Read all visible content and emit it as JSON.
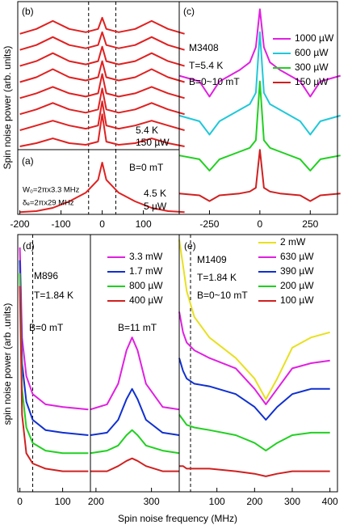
{
  "chart_data": [
    {
      "type": "line",
      "label": "(b)",
      "ylabel": "Spin noise power (arb. units)",
      "annotations": [
        "5.4 K",
        "150 µW"
      ],
      "xlim": [
        -205,
        187
      ],
      "ylim": [
        0,
        92
      ],
      "vlines": [
        -33,
        33
      ],
      "x": [
        -200,
        -160,
        -120,
        -80,
        -40,
        -10,
        0,
        10,
        40,
        80,
        120,
        160,
        200
      ],
      "series": [
        {
          "color": "#e02020",
          "values": [
            72,
            75,
            80,
            75,
            73,
            75,
            82,
            75,
            73,
            75,
            80,
            75,
            72
          ]
        },
        {
          "color": "#e02020",
          "values": [
            62,
            65,
            70,
            65,
            63,
            65,
            73,
            65,
            63,
            65,
            70,
            65,
            62
          ]
        },
        {
          "color": "#e02020",
          "values": [
            52,
            55,
            60,
            55,
            53,
            55,
            64,
            55,
            53,
            55,
            60,
            55,
            52
          ]
        },
        {
          "color": "#e02020",
          "values": [
            42,
            45,
            50,
            45,
            43,
            45,
            55,
            45,
            43,
            45,
            50,
            45,
            42
          ]
        },
        {
          "color": "#e02020",
          "values": [
            32,
            35,
            39,
            35,
            33,
            35,
            47,
            35,
            33,
            35,
            39,
            35,
            32
          ]
        },
        {
          "color": "#e02020",
          "values": [
            22,
            25,
            29,
            25,
            23,
            25,
            38,
            25,
            23,
            25,
            29,
            25,
            22
          ]
        },
        {
          "color": "#e02020",
          "values": [
            12,
            15,
            18,
            15,
            13,
            15,
            30,
            15,
            13,
            15,
            18,
            15,
            12
          ]
        },
        {
          "color": "#e02020",
          "values": [
            2,
            4,
            7,
            4,
            3,
            5,
            22,
            5,
            3,
            4,
            7,
            4,
            2
          ]
        }
      ]
    },
    {
      "type": "line",
      "label": "(a)",
      "annotations": [
        "B=0 mT",
        "W₀=2πx3.3 MHz",
        "δₑ=2πx29 MHz",
        "4.5 K",
        "5 µW"
      ],
      "xlim": [
        -205,
        187
      ],
      "ylim": [
        0,
        30
      ],
      "xticks": [
        -200,
        -100,
        0,
        100
      ],
      "vlines": [
        -33,
        33
      ],
      "x": [
        -200,
        -160,
        -120,
        -80,
        -40,
        -10,
        0,
        10,
        40,
        80,
        120,
        160,
        200
      ],
      "series": [
        {
          "color": "#e02020",
          "values": [
            1,
            1.5,
            3,
            6,
            10,
            16,
            24,
            16,
            10,
            6,
            3,
            1.5,
            1
          ]
        }
      ]
    },
    {
      "type": "line",
      "label": "(c)",
      "annotations": [
        "M3408",
        "T=5.4 K",
        "B=0~10 mT"
      ],
      "xlim": [
        -400,
        385
      ],
      "ylim": [
        0,
        112
      ],
      "xticks": [
        -250,
        0,
        250
      ],
      "x": [
        -400,
        -300,
        -250,
        -200,
        -100,
        -50,
        -20,
        0,
        20,
        50,
        100,
        200,
        250,
        300,
        400
      ],
      "series": [
        {
          "name": "1000 µW",
          "color": "#e020e0",
          "values": [
            73,
            70,
            62,
            70,
            76,
            80,
            88,
            108,
            88,
            80,
            76,
            70,
            62,
            70,
            73
          ]
        },
        {
          "name": "600 µW",
          "color": "#20c8d8",
          "values": [
            52,
            49,
            42,
            49,
            55,
            58,
            64,
            96,
            64,
            58,
            55,
            49,
            42,
            49,
            52
          ]
        },
        {
          "name": "300 µW",
          "color": "#20d020",
          "values": [
            31,
            29,
            23,
            29,
            33,
            35,
            39,
            70,
            39,
            35,
            33,
            29,
            23,
            29,
            31
          ]
        },
        {
          "name": "150 µW",
          "color": "#d02020",
          "values": [
            11,
            10,
            7,
            10,
            11,
            12,
            14,
            34,
            14,
            12,
            11,
            10,
            7,
            10,
            11
          ]
        }
      ]
    },
    {
      "type": "line",
      "label": "(d)",
      "ylabel": "spin noise power (arb .units)",
      "xlabel": "Spin noise frequency (MHz)",
      "annotations": [
        "M896",
        "T=1.84 K",
        "B=0 mT",
        "B=11 mT"
      ],
      "xlim": [
        -5,
        165
      ],
      "xticks": [
        0,
        100
      ],
      "x2lim": [
        190,
        350
      ],
      "x2ticks": [
        200,
        300
      ],
      "ylim": [
        0,
        100
      ],
      "vlines": [
        30
      ],
      "x": [
        0,
        5,
        15,
        30,
        60,
        100,
        160
      ],
      "x2": [
        190,
        220,
        240,
        255,
        265,
        275,
        290,
        320,
        350
      ],
      "series": [
        {
          "name": "3.3 mW",
          "color": "#e020e0",
          "values": [
            95,
            60,
            45,
            38,
            34,
            33,
            32
          ],
          "values2": [
            32,
            34,
            42,
            55,
            60,
            55,
            42,
            33,
            32
          ]
        },
        {
          "name": "1.7 mW",
          "color": "#1030d0",
          "values": [
            90,
            50,
            35,
            28,
            24,
            23,
            22
          ],
          "values2": [
            22,
            23,
            28,
            36,
            40,
            36,
            28,
            23,
            22
          ]
        },
        {
          "name": "800 µW",
          "color": "#20d020",
          "values": [
            85,
            40,
            25,
            19,
            16,
            15,
            15
          ],
          "values2": [
            15,
            16,
            18,
            22,
            24,
            22,
            18,
            16,
            15
          ]
        },
        {
          "name": "400 µW",
          "color": "#d02020",
          "values": [
            80,
            30,
            15,
            11,
            9,
            8,
            8
          ],
          "values2": [
            8,
            8,
            10,
            12,
            13,
            12,
            10,
            8,
            8
          ]
        }
      ]
    },
    {
      "type": "line",
      "label": "(e)",
      "annotations": [
        "M1409",
        "T=1.84 K",
        "B=0~10 mT"
      ],
      "xlim": [
        0,
        420
      ],
      "ylim": [
        0,
        100
      ],
      "xticks": [
        100,
        200,
        300,
        400
      ],
      "vlines": [
        30
      ],
      "x": [
        0,
        10,
        20,
        40,
        80,
        150,
        200,
        230,
        260,
        300,
        350,
        400
      ],
      "series": [
        {
          "name": "2 mW",
          "color": "#e8e020",
          "values": [
            98,
            88,
            78,
            68,
            60,
            52,
            44,
            36,
            44,
            56,
            60,
            62
          ]
        },
        {
          "name": "630 µW",
          "color": "#e020e0",
          "values": [
            70,
            62,
            58,
            55,
            52,
            48,
            40,
            34,
            40,
            48,
            50,
            51
          ]
        },
        {
          "name": "390 µW",
          "color": "#1030d0",
          "values": [
            52,
            47,
            44,
            42,
            41,
            38,
            33,
            28,
            33,
            38,
            40,
            40
          ]
        },
        {
          "name": "200 µW",
          "color": "#20d020",
          "values": [
            30,
            28,
            26,
            25,
            24,
            22,
            19,
            16,
            19,
            22,
            23,
            23
          ]
        },
        {
          "name": "100 µW",
          "color": "#d02020",
          "values": [
            10,
            10,
            9,
            9,
            9,
            8,
            7,
            6,
            7,
            8,
            8,
            8
          ]
        }
      ]
    }
  ]
}
